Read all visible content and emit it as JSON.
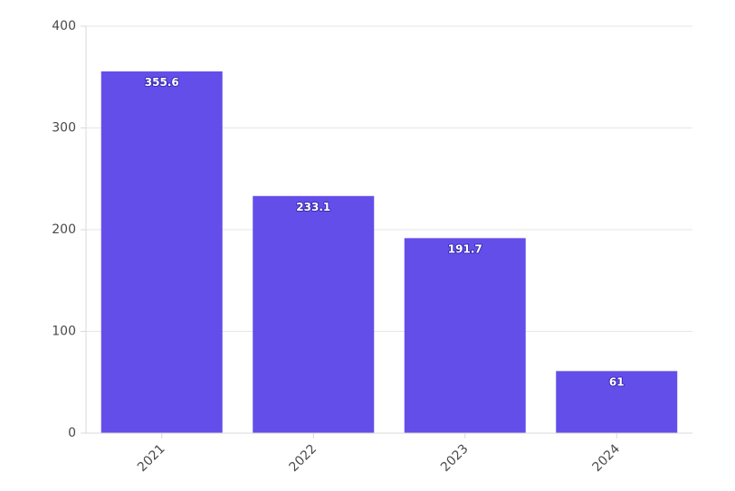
{
  "chart_data": {
    "type": "bar",
    "title": "",
    "xlabel": "",
    "ylabel": "",
    "categories": [
      "2021",
      "2022",
      "2023",
      "2024"
    ],
    "values": [
      355.6,
      233.1,
      191.7,
      61
    ],
    "data_labels": [
      "355.6",
      "233.1",
      "191.7",
      "61"
    ],
    "ylim": [
      0,
      400
    ],
    "yticks": [
      0,
      100,
      200,
      300,
      400
    ],
    "ytick_labels": [
      "0",
      "100",
      "200",
      "300",
      "400"
    ],
    "grid": true,
    "legend": "none",
    "bar_color": "#5b45e9",
    "x_tick_rotation": "diagonal"
  }
}
